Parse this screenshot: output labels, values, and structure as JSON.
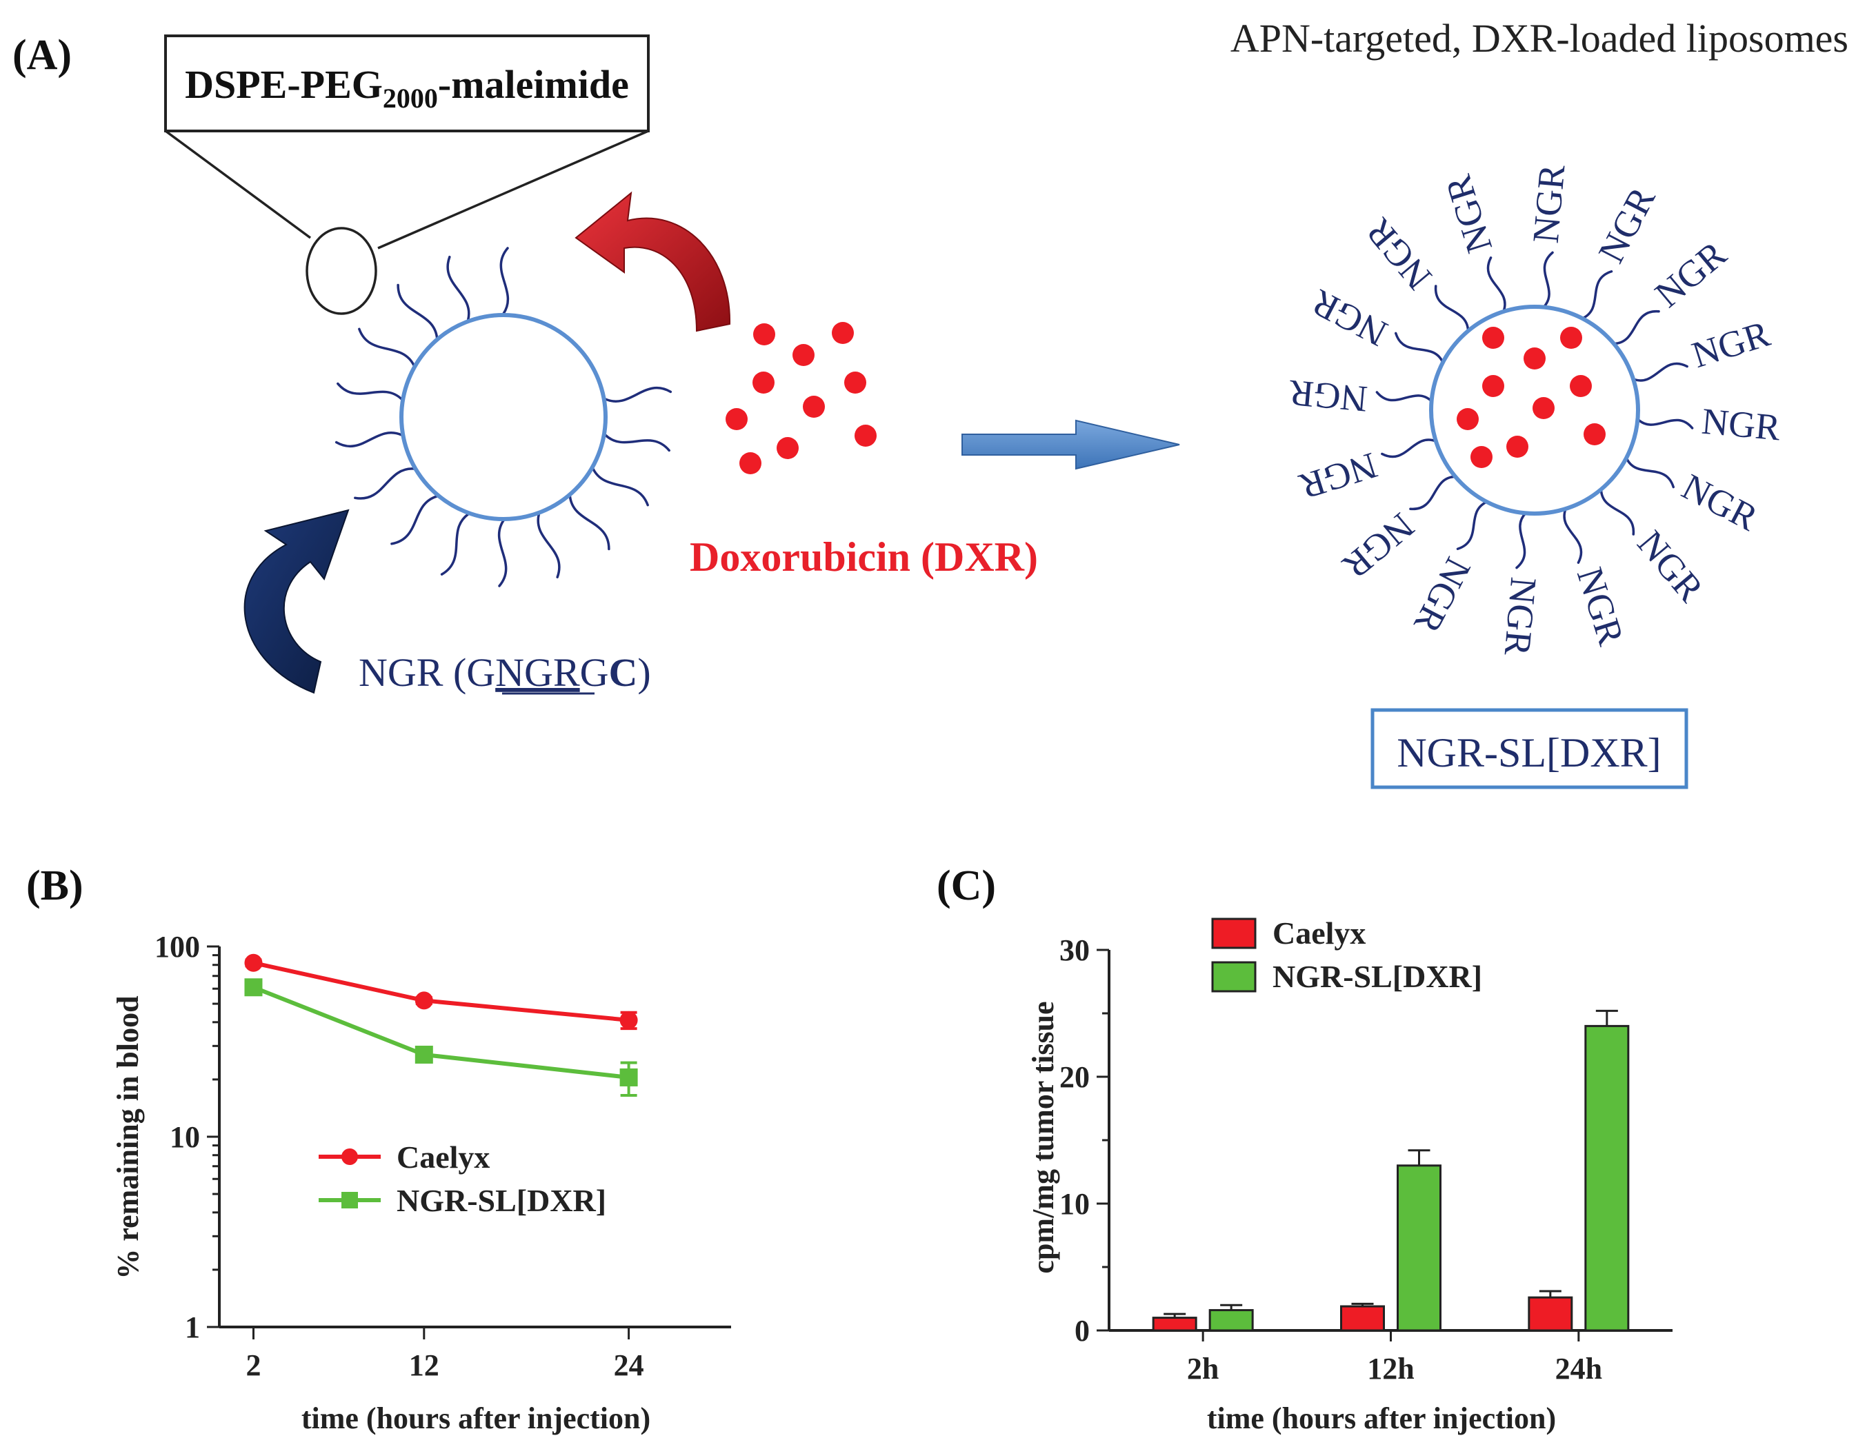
{
  "panel_a": {
    "panel_label": "(A)",
    "lipid_label_main": "DSPE-PEG",
    "lipid_label_sub": "2000",
    "lipid_label_end": "-maleimide",
    "drug_label": "Doxorubicin (DXR)",
    "peptide_label_prefix": "NGR (G",
    "peptide_label_underlined": "NGR",
    "peptide_label_g": "G",
    "peptide_label_bold": "C",
    "peptide_label_suffix": ")",
    "product_title": "APN-targeted, DXR-loaded liposomes",
    "ligand_label": "NGR",
    "product_box_label": "NGR-SL[DXR]",
    "colors": {
      "membrane": "#5b8fd1",
      "peg_chain": "#1f2d7a",
      "drug": "#ee1c25",
      "red_arrow": "#c8161d",
      "navy_arrow": "#152c5c",
      "process_arrow": "#4e86c8",
      "ngr_text": "#1f2d6a",
      "drug_text": "#e8202a"
    }
  },
  "chart_data": [
    {
      "panel": "B",
      "panel_label": "(B)",
      "type": "line",
      "yscale": "log",
      "xlabel": "time (hours after injection)",
      "ylabel": "% remaining in blood",
      "x": [
        2,
        12,
        24
      ],
      "x_tick_labels": [
        "2",
        "12",
        "24"
      ],
      "ylim": [
        1,
        100
      ],
      "y_ticks": [
        1,
        10,
        100
      ],
      "y_tick_labels": [
        "1",
        "10",
        "100"
      ],
      "grid": false,
      "legend_position": "center-left",
      "series": [
        {
          "name": "Caelyx",
          "color": "#ee1c25",
          "marker": "circle",
          "values": [
            82,
            52,
            41
          ],
          "errors": [
            3,
            2,
            4
          ]
        },
        {
          "name": "NGR-SL[DXR]",
          "color": "#5cbd3c",
          "marker": "square",
          "values": [
            61,
            27,
            20.5
          ],
          "errors": [
            4,
            2,
            4
          ]
        }
      ]
    },
    {
      "panel": "C",
      "panel_label": "(C)",
      "type": "bar",
      "xlabel": "time (hours after injection)",
      "ylabel": "cpm/mg tumor tissue",
      "categories": [
        "2h",
        "12h",
        "24h"
      ],
      "ylim": [
        0,
        30
      ],
      "y_ticks": [
        0,
        10,
        20,
        30
      ],
      "y_tick_labels": [
        "0",
        "10",
        "20",
        "30"
      ],
      "grid": false,
      "legend_position": "top-left",
      "series": [
        {
          "name": "Caelyx",
          "color": "#ee1c25",
          "values": [
            1.0,
            1.9,
            2.6
          ],
          "errors": [
            0.3,
            0.2,
            0.5
          ]
        },
        {
          "name": "NGR-SL[DXR]",
          "color": "#5cbd3c",
          "values": [
            1.6,
            13.0,
            24.0
          ],
          "errors": [
            0.4,
            1.2,
            1.2
          ]
        }
      ]
    }
  ]
}
